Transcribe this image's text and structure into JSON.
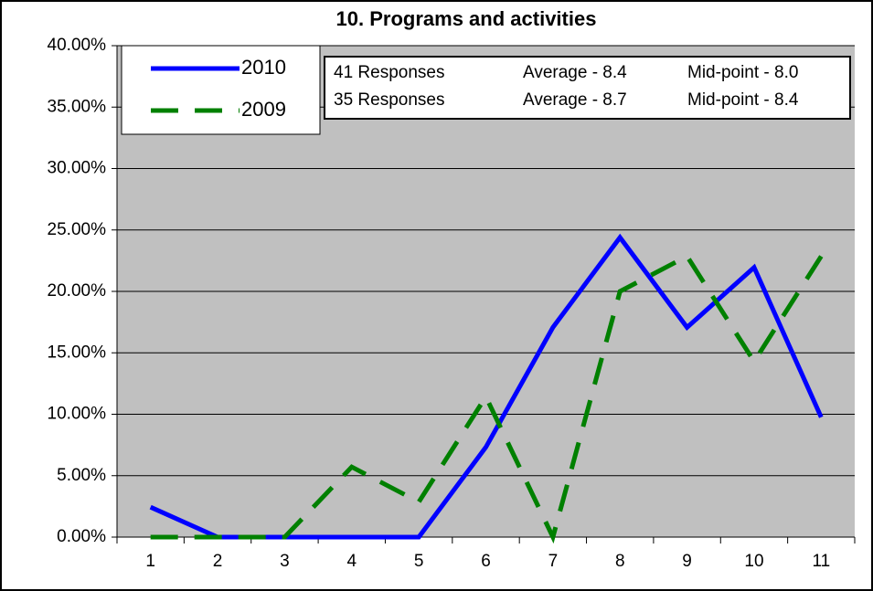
{
  "chart_data": {
    "type": "line",
    "title": "10. Programs and activities",
    "categories": [
      "1",
      "2",
      "3",
      "4",
      "5",
      "6",
      "7",
      "8",
      "9",
      "10",
      "11"
    ],
    "series": [
      {
        "name": "2010",
        "color": "#0000ff",
        "dashed": false,
        "values": [
          2.44,
          0,
          0,
          0,
          0,
          7.32,
          17.07,
          24.39,
          17.07,
          21.95,
          9.76
        ]
      },
      {
        "name": "2009",
        "color": "#008000",
        "dashed": true,
        "values": [
          0,
          0,
          0,
          5.71,
          2.86,
          11.43,
          0,
          20,
          22.86,
          14.29,
          22.86
        ]
      }
    ],
    "annotations": [
      [
        "41 Responses",
        "Average - 8.4",
        "Mid-point - 8.0"
      ],
      [
        "35 Responses",
        "Average - 8.7",
        "Mid-point - 8.4"
      ]
    ],
    "ylim": [
      0,
      40
    ],
    "yticks": [
      {
        "value": 0,
        "label": "0.00%"
      },
      {
        "value": 5,
        "label": "5.00%"
      },
      {
        "value": 10,
        "label": "10.00%"
      },
      {
        "value": 15,
        "label": "15.00%"
      },
      {
        "value": 20,
        "label": "20.00%"
      },
      {
        "value": 25,
        "label": "25.00%"
      },
      {
        "value": 30,
        "label": "30.00%"
      },
      {
        "value": 35,
        "label": "35.00%"
      },
      {
        "value": 40,
        "label": "40.00%"
      }
    ],
    "grid": true
  }
}
